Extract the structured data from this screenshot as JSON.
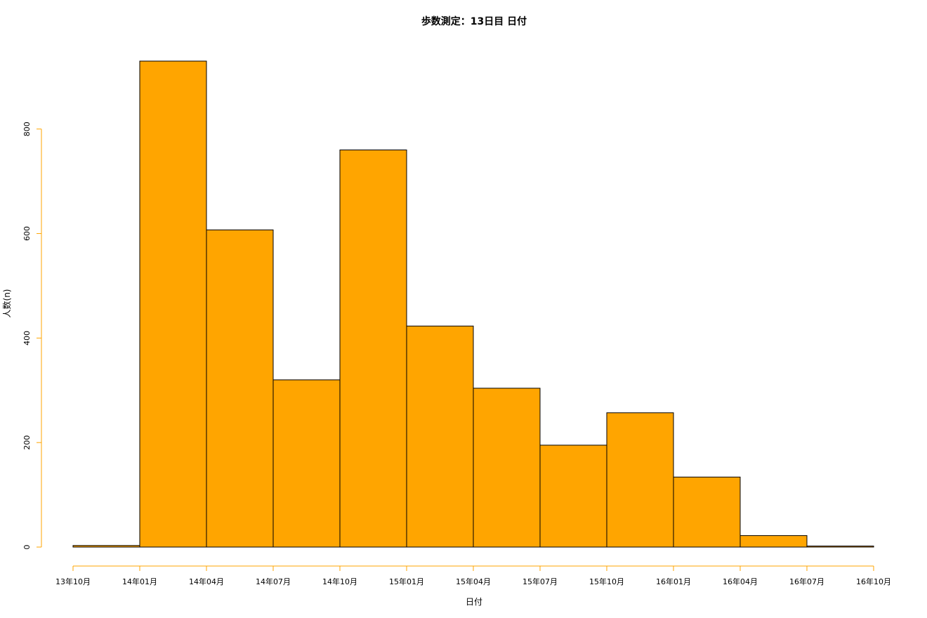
{
  "chart_data": {
    "type": "bar",
    "title": "歩数測定：13日目 日付",
    "xlabel": "日付",
    "ylabel": "人数(n)",
    "x_ticks": [
      "13年10月",
      "14年01月",
      "14年04月",
      "14年07月",
      "14年10月",
      "15年01月",
      "15年04月",
      "15年07月",
      "15年10月",
      "16年01月",
      "16年04月",
      "16年07月",
      "16年10月"
    ],
    "y_ticks": [
      0,
      200,
      400,
      600,
      800
    ],
    "ylim": [
      0,
      930
    ],
    "categories": [
      "13年10月–14年01月",
      "14年01月–14年04月",
      "14年04月–14年07月",
      "14年07月–14年10月",
      "14年10月–15年01月",
      "15年01月–15年04月",
      "15年04月–15年07月",
      "15年07月–15年10月",
      "15年10月–16年01月",
      "16年01月–16年04月",
      "16年04月–16年07月",
      "16年07月–16年10月"
    ],
    "values": [
      3,
      930,
      607,
      320,
      760,
      423,
      304,
      195,
      257,
      134,
      22,
      2
    ],
    "grid": false,
    "bar_color": "#FFA500",
    "bar_border_color": "#000000",
    "axis_color": "#FFA500"
  }
}
